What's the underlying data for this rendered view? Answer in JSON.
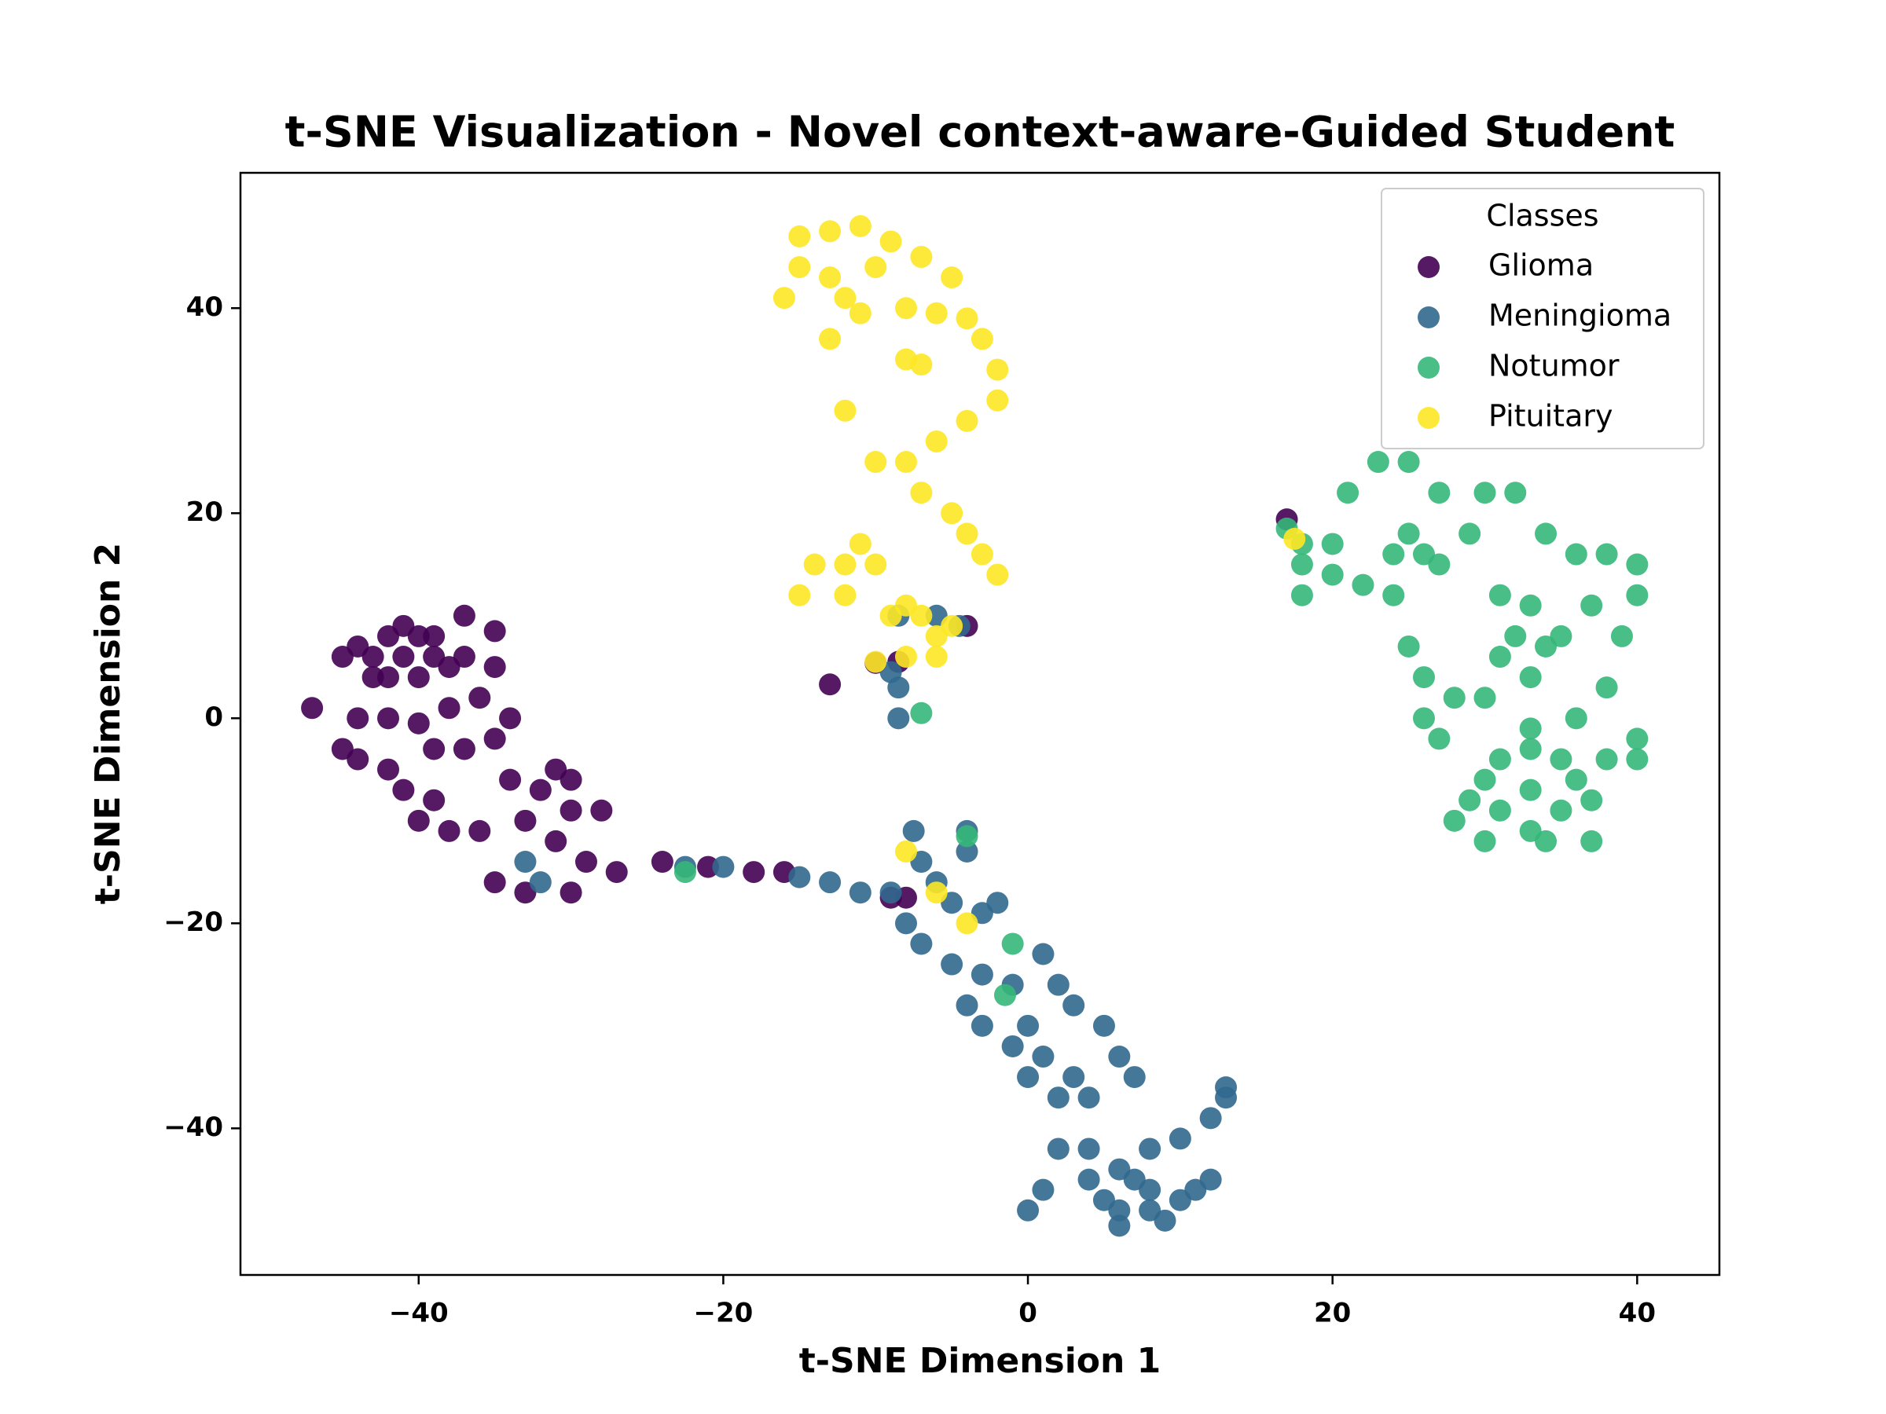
{
  "chart_data": {
    "type": "scatter",
    "title": "t-SNE Visualization - Novel context-aware-Guided Student",
    "x_label": "t-SNE Dimension 1",
    "y_label": "t-SNE Dimension 2",
    "legend_title": "Classes",
    "legend_position": "upper right",
    "xlim": [
      -51.7,
      45.4
    ],
    "ylim": [
      -54.3,
      53.2
    ],
    "xticks": [
      {
        "value": -40,
        "label": "−40"
      },
      {
        "value": -20,
        "label": "−20"
      },
      0,
      20,
      40
    ],
    "yticks": [
      {
        "value": -40,
        "label": "−40"
      },
      {
        "value": -20,
        "label": "−20"
      },
      0,
      20,
      40
    ],
    "series": [
      {
        "name": "Glioma",
        "color": "#440154",
        "x": [
          -41,
          -43,
          -39,
          -42,
          -40,
          -42,
          -40,
          -44,
          -38,
          -41,
          -43,
          -39,
          -37,
          -45,
          -47,
          -37,
          -35,
          -35,
          -36,
          -34,
          -35,
          -37,
          -39,
          -38,
          -40,
          -44,
          -42,
          -45,
          -44,
          -42,
          -41,
          -39,
          -40,
          -38,
          -36,
          -34,
          -32,
          -31,
          -30,
          -30,
          -31,
          -33,
          -28,
          -29,
          -30,
          -27,
          -33,
          -35,
          -24,
          -21,
          -18,
          -16,
          -9,
          -8,
          -13,
          -10,
          -8.5,
          17,
          -4
        ],
        "y": [
          6,
          6,
          6,
          8,
          8,
          4,
          4,
          7,
          5,
          9,
          4,
          8,
          6,
          6,
          1,
          10,
          8.5,
          5,
          2,
          0,
          -2,
          -3,
          -3,
          1,
          -0.5,
          0,
          0,
          -3,
          -4,
          -5,
          -7,
          -8,
          -10,
          -11,
          -11,
          -6,
          -7,
          -5,
          -6,
          -9,
          -12,
          -10,
          -9,
          -14,
          -17,
          -15,
          -17,
          -16,
          -14,
          -14.5,
          -15,
          -15,
          -17.5,
          -17.5,
          3.3,
          5.4,
          5.5,
          19.4,
          9
        ]
      },
      {
        "name": "Meningioma",
        "color": "#31688e",
        "x": [
          -33,
          -32,
          -22.5,
          -20,
          -15,
          -13,
          -11,
          -9,
          -7.5,
          -7,
          -6,
          -5,
          -4,
          -4,
          -3,
          -2,
          -8,
          -7,
          -5,
          -3,
          -1,
          1,
          2,
          3,
          -4,
          -3,
          0,
          1,
          3,
          -1,
          0,
          2,
          5,
          6,
          7,
          4,
          2,
          4,
          6,
          8,
          10,
          12,
          13,
          13,
          8,
          8,
          10,
          11,
          6,
          7,
          9,
          5,
          4,
          1,
          0,
          6,
          12,
          -8.5,
          -8.5,
          -8.5,
          -6,
          -4.5,
          -9
        ],
        "y": [
          -14,
          -16,
          -14.5,
          -14.5,
          -15.5,
          -16,
          -17,
          -17,
          -11,
          -14,
          -16,
          -18,
          -13,
          -11,
          -19,
          -18,
          -20,
          -22,
          -24,
          -25,
          -26,
          -23,
          -26,
          -28,
          -28,
          -30,
          -30,
          -33,
          -35,
          -32,
          -35,
          -37,
          -30,
          -33,
          -35,
          -37,
          -42,
          -42,
          -44,
          -42,
          -41,
          -39,
          -37,
          -36,
          -46,
          -48,
          -47,
          -46,
          -48,
          -45,
          -49,
          -47,
          -45,
          -46,
          -48,
          -49.5,
          -45,
          0,
          3,
          10,
          10,
          9,
          4.5
        ]
      },
      {
        "name": "Notumor",
        "color": "#35b779",
        "x": [
          33,
          30,
          36,
          33,
          33,
          31,
          35,
          31,
          35,
          29,
          37,
          33,
          34,
          38,
          36,
          38,
          40,
          40,
          30,
          37,
          28,
          30,
          31,
          32,
          33,
          35,
          37,
          39,
          40,
          40,
          38,
          36,
          34,
          32,
          30,
          27,
          25,
          23,
          21,
          20,
          18,
          18,
          18,
          20,
          22,
          24,
          25,
          26,
          27,
          29,
          24,
          25,
          26,
          26,
          27,
          31,
          33,
          34,
          -22.5,
          -7,
          -4,
          -1,
          -1.5,
          17,
          28
        ],
        "y": [
          -7,
          -6,
          -6,
          -3,
          -11,
          -9,
          -9,
          -4,
          -4,
          -8,
          -8,
          -1,
          -12,
          -4,
          0,
          3,
          -4,
          -2,
          -12,
          -12,
          -10,
          2,
          6,
          8,
          4,
          8,
          11,
          8,
          12,
          15,
          16,
          16,
          18,
          22,
          22,
          22,
          25,
          25,
          22,
          17,
          17,
          15,
          12,
          14,
          13,
          16,
          18,
          16,
          15,
          18,
          12,
          7,
          4,
          0,
          -2,
          12,
          11,
          7,
          -15,
          0.5,
          -11.5,
          -22,
          -27,
          18.5,
          2
        ]
      },
      {
        "name": "Pituitary",
        "color": "#fde725",
        "x": [
          -15,
          -13,
          -11,
          -9,
          -7,
          -5,
          -15,
          -16,
          -13,
          -11,
          -13,
          -10,
          -8,
          -6,
          -4,
          -3,
          -2,
          -2,
          -4,
          -6,
          -8,
          -7,
          -5,
          -4,
          -3,
          -2,
          -10,
          -8,
          -7,
          -12,
          -11,
          -10,
          -12,
          -14,
          -15,
          -9,
          -7,
          -6,
          -5,
          -6,
          -8,
          -10,
          -8,
          -12,
          17.5,
          -8,
          -6,
          -4,
          -12
        ],
        "y": [
          47,
          47.5,
          48,
          46.5,
          45,
          43,
          44,
          41,
          43,
          39.5,
          37,
          44,
          40,
          39.5,
          39,
          37,
          34,
          31,
          29,
          27,
          25,
          22,
          20,
          18,
          16,
          14,
          25,
          35,
          34.5,
          30,
          17,
          15,
          12,
          15,
          12,
          10,
          10,
          8,
          9,
          6,
          6,
          5.5,
          11,
          15,
          17.5,
          -13,
          -17,
          -20,
          41
        ]
      }
    ]
  }
}
